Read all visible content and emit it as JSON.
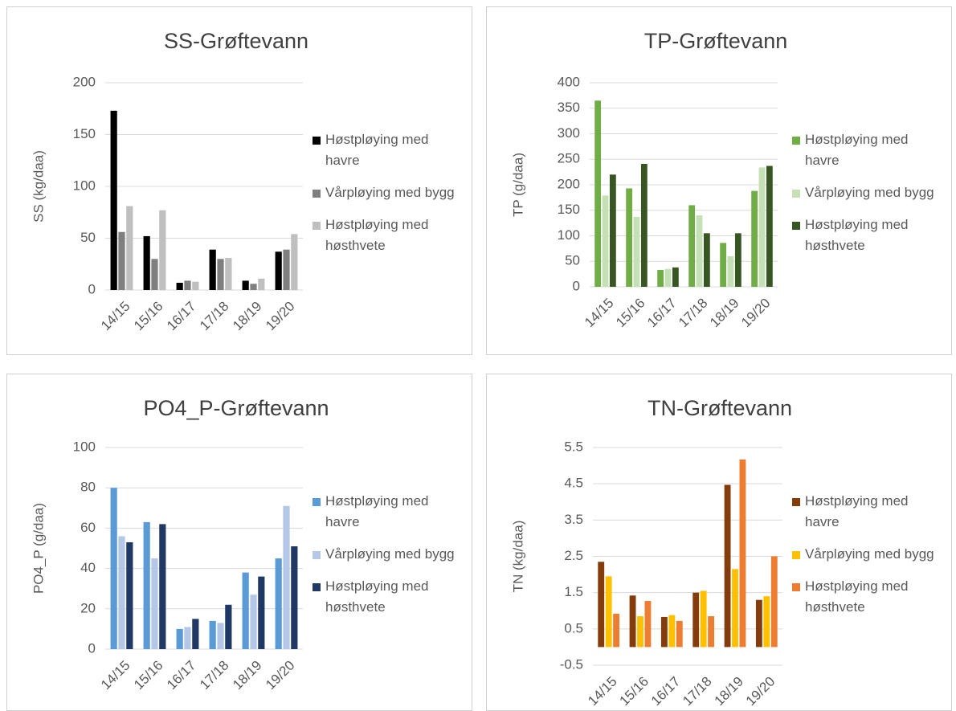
{
  "chart_data": [
    {
      "type": "bar",
      "title": "SS-Grøftevann",
      "y_label": "SS (kg/daa)",
      "categories": [
        "14/15",
        "15/16",
        "16/17",
        "17/18",
        "18/19",
        "19/20"
      ],
      "series": [
        {
          "name": "Høstpløying med havre",
          "color": "#000000",
          "values": [
            173,
            52,
            7,
            39,
            9,
            37
          ]
        },
        {
          "name": "Vårpløying med bygg",
          "color": "#7f7f7f",
          "values": [
            56,
            30,
            9,
            30,
            6,
            39
          ]
        },
        {
          "name": "Høstpløying med høsthvete",
          "color": "#bfbfbf",
          "values": [
            81,
            77,
            8,
            31,
            11,
            54
          ]
        }
      ],
      "ylim": [
        0,
        200
      ],
      "yticks": [
        0,
        50,
        100,
        150,
        200
      ],
      "grid": true
    },
    {
      "type": "bar",
      "title": "TP-Grøftevann",
      "y_label": "TP (g/daa)",
      "categories": [
        "14/15",
        "15/16",
        "16/17",
        "17/18",
        "18/19",
        "19/20"
      ],
      "series": [
        {
          "name": "Høstpløying med havre",
          "color": "#70ad47",
          "values": [
            365,
            193,
            33,
            160,
            86,
            188
          ]
        },
        {
          "name": "Vårpløying med bygg",
          "color": "#c5e0b4",
          "values": [
            179,
            137,
            35,
            140,
            60,
            234
          ]
        },
        {
          "name": "Høstpløying med høsthvete",
          "color": "#375623",
          "values": [
            220,
            241,
            38,
            105,
            105,
            237
          ]
        }
      ],
      "ylim": [
        0,
        400
      ],
      "yticks": [
        0,
        50,
        100,
        150,
        200,
        250,
        300,
        350,
        400
      ],
      "grid": true
    },
    {
      "type": "bar",
      "title": "PO4_P-Grøftevann",
      "y_label": "PO4_P (g/daa)",
      "categories": [
        "14/15",
        "15/16",
        "16/17",
        "17/18",
        "18/19",
        "19/20"
      ],
      "series": [
        {
          "name": "Høstpløying med havre",
          "color": "#5b9bd5",
          "values": [
            80,
            63,
            10,
            14,
            38,
            45
          ]
        },
        {
          "name": "Vårpløying med bygg",
          "color": "#b4c7e7",
          "values": [
            56,
            45,
            11,
            13,
            27,
            71
          ]
        },
        {
          "name": "Høstpløying med høsthvete",
          "color": "#1f3864",
          "values": [
            53,
            62,
            15,
            22,
            36,
            51
          ]
        }
      ],
      "ylim": [
        0,
        100
      ],
      "yticks": [
        0,
        20,
        40,
        60,
        80,
        100
      ],
      "grid": true
    },
    {
      "type": "bar",
      "title": "TN-Grøftevann",
      "y_label": "TN (kg/daa)",
      "categories": [
        "14/15",
        "15/16",
        "16/17",
        "17/18",
        "18/19",
        "19/20"
      ],
      "series": [
        {
          "name": "Høstpløying med havre",
          "color": "#843c0c",
          "values": [
            2.35,
            1.42,
            0.83,
            1.5,
            4.47,
            1.3
          ]
        },
        {
          "name": "Vårpløying med bygg",
          "color": "#ffc000",
          "values": [
            1.95,
            0.85,
            0.88,
            1.55,
            2.15,
            1.4
          ]
        },
        {
          "name": "Høstpløying med høsthvete",
          "color": "#ed7d31",
          "values": [
            0.92,
            1.27,
            0.72,
            0.85,
            5.17,
            2.5
          ]
        }
      ],
      "ylim": [
        -0.5,
        5.5
      ],
      "yticks": [
        -0.5,
        0.5,
        1.5,
        2.5,
        3.5,
        4.5,
        5.5
      ],
      "grid": true
    }
  ]
}
